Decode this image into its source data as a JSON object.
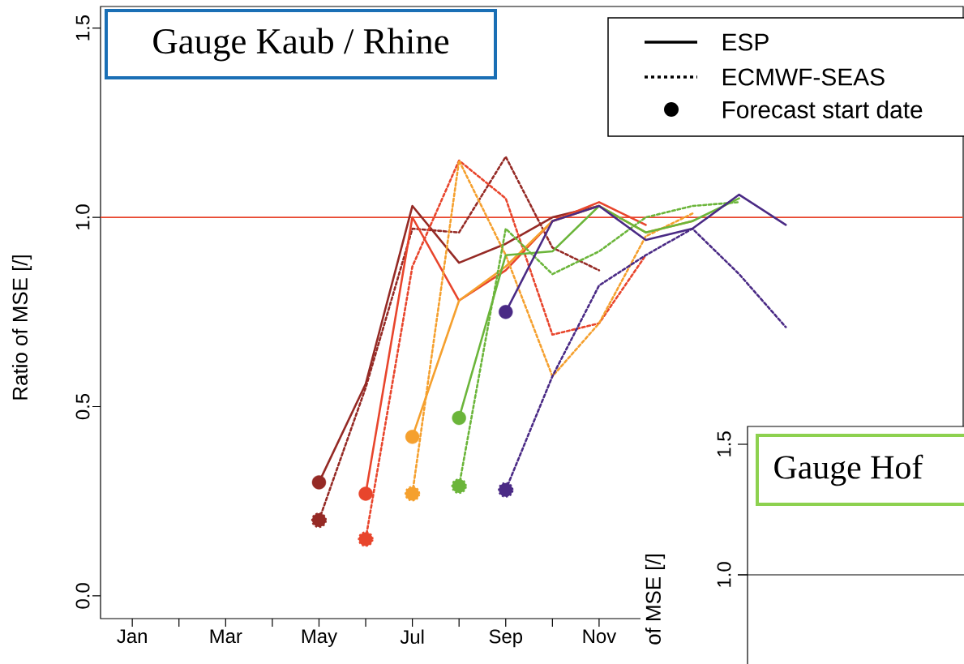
{
  "chart_data": [
    {
      "type": "line",
      "title": "Gauge Kaub / Rhine",
      "ylabel": "Ratio of MSE [/]",
      "categories": [
        "Jan",
        null,
        "Mar",
        null,
        "May",
        null,
        "Jul",
        null,
        "Sep",
        null,
        "Nov",
        null,
        null,
        null,
        null
      ],
      "ylim": [
        -0.06,
        1.557
      ],
      "yticks": [
        {
          "value": 0,
          "label": "0.0"
        },
        {
          "value": 0.5,
          "label": "0.5"
        },
        {
          "value": 1,
          "label": "1.0"
        },
        {
          "value": 1.5,
          "label": "1.5"
        }
      ],
      "series": [
        {
          "color": "#952a25",
          "line_style": "solid",
          "values": [
            null,
            null,
            null,
            null,
            0.3,
            0.56,
            1.03,
            0.88,
            0.93,
            1.0,
            1.03,
            null,
            null,
            null,
            null
          ]
        },
        {
          "color": "#952a25",
          "line_style": "dotted",
          "values": [
            null,
            null,
            null,
            null,
            0.2,
            0.55,
            0.97,
            0.96,
            1.16,
            0.92,
            0.86,
            null,
            null,
            null,
            null
          ]
        },
        {
          "color": "#e8452c",
          "line_style": "solid",
          "values": [
            null,
            null,
            null,
            null,
            null,
            0.27,
            1.0,
            0.78,
            0.86,
            0.99,
            1.04,
            0.98,
            null,
            null,
            null
          ]
        },
        {
          "color": "#e8452c",
          "line_style": "dotted",
          "values": [
            null,
            null,
            null,
            null,
            null,
            0.15,
            0.87,
            1.15,
            1.05,
            0.69,
            0.72,
            0.9,
            null,
            null,
            null
          ]
        },
        {
          "color": "#f5a02e",
          "line_style": "solid",
          "values": [
            null,
            null,
            null,
            null,
            null,
            null,
            0.42,
            0.78,
            0.87,
            0.99,
            1.03,
            0.96,
            0.99,
            null,
            null
          ]
        },
        {
          "color": "#f5a02e",
          "line_style": "dotted",
          "values": [
            null,
            null,
            null,
            null,
            null,
            null,
            0.27,
            1.15,
            0.9,
            0.58,
            0.72,
            0.95,
            1.01,
            null,
            null
          ]
        },
        {
          "color": "#6bb53a",
          "line_style": "solid",
          "values": [
            null,
            null,
            null,
            null,
            null,
            null,
            null,
            0.47,
            0.9,
            0.91,
            1.03,
            0.96,
            0.99,
            1.05,
            null
          ]
        },
        {
          "color": "#6bb53a",
          "line_style": "dotted",
          "values": [
            null,
            null,
            null,
            null,
            null,
            null,
            null,
            0.29,
            0.97,
            0.85,
            0.91,
            1.0,
            1.03,
            1.04,
            null
          ]
        },
        {
          "color": "#4a2a85",
          "line_style": "solid",
          "values": [
            null,
            null,
            null,
            null,
            null,
            null,
            null,
            null,
            0.75,
            0.99,
            1.03,
            0.94,
            0.97,
            1.06,
            0.98
          ]
        },
        {
          "color": "#4a2a85",
          "line_style": "dotted",
          "values": [
            null,
            null,
            null,
            null,
            null,
            null,
            null,
            null,
            0.28,
            0.58,
            0.82,
            0.9,
            0.97,
            0.85,
            0.71
          ]
        },
        {
          "type": "scatter",
          "marker": "circle",
          "line_style": "solid",
          "values": [
            null,
            null,
            null,
            null,
            0.3,
            0.27,
            0.42,
            0.47,
            0.75,
            null,
            null,
            null,
            null,
            null,
            null
          ],
          "colors": [
            null,
            null,
            null,
            null,
            "#952a25",
            "#e8452c",
            "#f5a02e",
            "#6bb53a",
            "#4a2a85",
            null,
            null,
            null,
            null,
            null,
            null
          ]
        },
        {
          "type": "scatter",
          "marker": "circle",
          "line_style": "dotted",
          "values": [
            null,
            null,
            null,
            null,
            0.2,
            0.15,
            0.27,
            0.29,
            0.28,
            null,
            null,
            null,
            null,
            null,
            null
          ],
          "colors": [
            null,
            null,
            null,
            null,
            "#952a25",
            "#e8452c",
            "#f5a02e",
            "#6bb53a",
            "#4a2a85",
            null,
            null,
            null,
            null,
            null,
            null
          ]
        }
      ],
      "ref_lines": [
        {
          "axis": "y",
          "value": 1.0,
          "color": "#e8452c"
        }
      ],
      "annotations": [
        "ESP",
        "ECMWF-SEAS",
        "Forecast start date"
      ]
    },
    {
      "type": "other",
      "title": "Gauge Hof",
      "ylabel": "of MSE [/]",
      "annotations": [
        "1.0",
        "1.5"
      ]
    }
  ]
}
